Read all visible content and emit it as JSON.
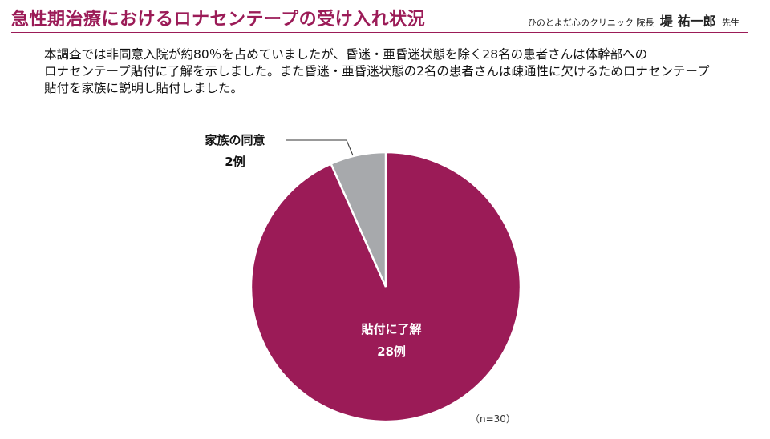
{
  "header": {
    "title": "急性期治療におけるロナセンテープの受け入れ状況",
    "clinic": "ひのとよだ心のクリニック",
    "role": "院長",
    "doctor": "堤 祐一郎",
    "suffix": "先生"
  },
  "intro": {
    "lines": [
      "本調査では非同意入院が約80％を占めていましたが、昏迷・亜昏迷状態を除く28名の患者さんは体幹部への",
      "ロナセンテープ貼付に了解を示しました。また昏迷・亜昏迷状態の2名の患者さんは疎通性に欠けるためロナセンテープ",
      "貼付を家族に説明し貼付しました。"
    ]
  },
  "chart_data": {
    "type": "pie",
    "title": "",
    "slices": [
      {
        "label": "貼付に了解",
        "value_label": "28例",
        "value": 28,
        "color": "#9b1b57"
      },
      {
        "label": "家族の同意",
        "value_label": "2例",
        "value": 2,
        "color": "#a7a9ac"
      }
    ],
    "total_note": "（n=30）"
  }
}
